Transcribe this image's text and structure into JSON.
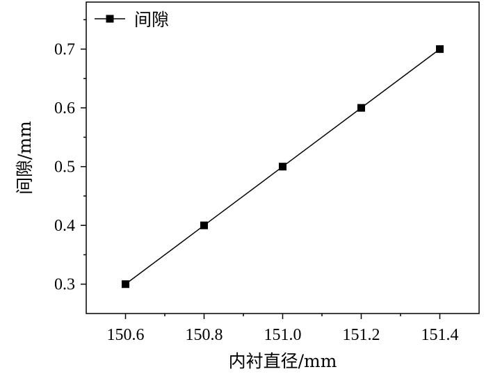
{
  "chart_data": {
    "type": "line",
    "title": "",
    "xlabel": "内衬直径/mm",
    "ylabel": "间隙/mm",
    "x": [
      150.6,
      150.8,
      151.0,
      151.2,
      151.4
    ],
    "series": [
      {
        "name": "间隙",
        "values": [
          0.3,
          0.4,
          0.5,
          0.6,
          0.7
        ],
        "color": "#000000",
        "marker": "square"
      }
    ],
    "xlim": [
      150.5,
      151.5
    ],
    "ylim": [
      0.25,
      0.78
    ],
    "xticks": [
      150.6,
      150.8,
      151.0,
      151.2,
      151.4
    ],
    "xtick_labels": [
      "150.6",
      "150.8",
      "151.0",
      "151.2",
      "151.4"
    ],
    "yticks": [
      0.3,
      0.4,
      0.5,
      0.6,
      0.7
    ],
    "ytick_labels": [
      "0.3",
      "0.4",
      "0.5",
      "0.6",
      "0.7"
    ],
    "grid": false,
    "legend_position": "top-left"
  }
}
